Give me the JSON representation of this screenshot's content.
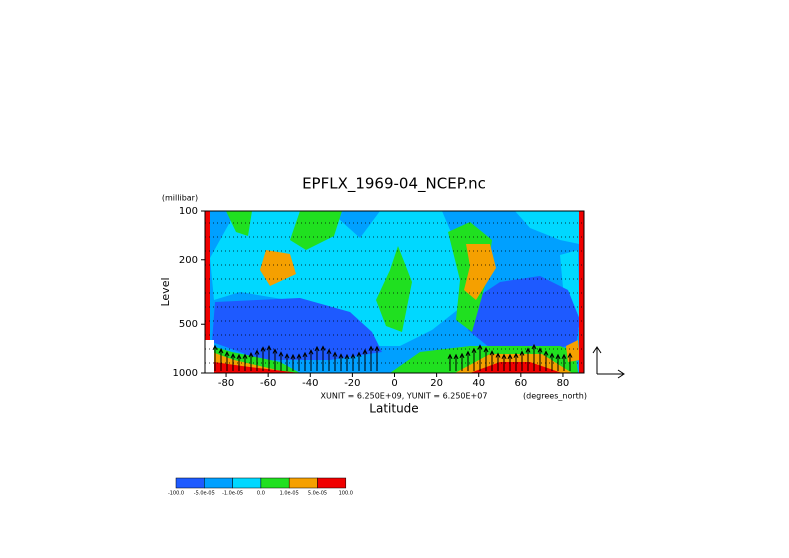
{
  "chart_data": {
    "type": "contour",
    "title": "EPFLX_1969-04_NCEP.nc",
    "y_unit": "(millibar)",
    "y_label": "Level",
    "x_label": "Latitude",
    "x_unit": "(degrees_north)",
    "vector_scale": "XUNIT = 6.250E+09, YUNIT = 6.250E+07",
    "xlim": [
      -90,
      90
    ],
    "xticks": [
      -80,
      -60,
      -40,
      -20,
      0,
      20,
      40,
      60,
      80
    ],
    "ylim": [
      1000,
      100
    ],
    "yticks": [
      100,
      200,
      500,
      1000
    ],
    "log_y": true,
    "levels": [
      {
        "value": -100,
        "label": "-100.0"
      },
      {
        "value": -5e-05,
        "label": "-5.0e-05"
      },
      {
        "value": -1e-05,
        "label": "-1.0e-05"
      },
      {
        "value": 0,
        "label": "0.0"
      },
      {
        "value": 1e-05,
        "label": "1.0e-05"
      },
      {
        "value": 5e-05,
        "label": "5.0e-05"
      },
      {
        "value": 100,
        "label": "100.0"
      }
    ],
    "colors": [
      "#1e5aff",
      "#00a0ff",
      "#00d8ff",
      "#20e020",
      "#f5a000",
      "#f00000"
    ]
  }
}
